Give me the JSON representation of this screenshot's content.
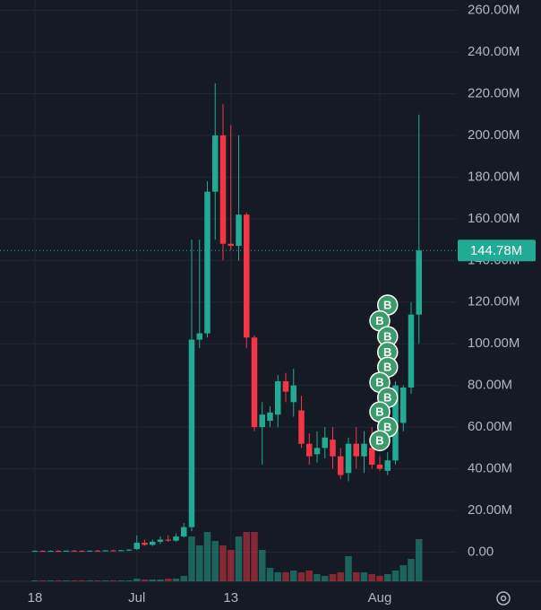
{
  "chart_data": {
    "type": "candlestick",
    "categories": [
      "18",
      null,
      null,
      null,
      null,
      null,
      null,
      null,
      null,
      null,
      null,
      null,
      null,
      "Jul",
      null,
      null,
      null,
      null,
      null,
      null,
      null,
      null,
      null,
      null,
      null,
      "13",
      null,
      null,
      null,
      null,
      null,
      null,
      null,
      null,
      null,
      null,
      null,
      null,
      null,
      null,
      null,
      null,
      null,
      null,
      "Aug",
      null,
      null,
      null,
      null,
      null
    ],
    "open": [
      0.5,
      0.6,
      0.5,
      0.6,
      0.5,
      0.7,
      0.6,
      0.5,
      0.7,
      0.6,
      0.8,
      0.7,
      0.9,
      1.5,
      4.5,
      3.5,
      5,
      6,
      5.5,
      7.5,
      12,
      102,
      105,
      173,
      200,
      148,
      147,
      162,
      103,
      60,
      63,
      66,
      82,
      72,
      68,
      52,
      47,
      50,
      54,
      46,
      38,
      52,
      46,
      50,
      42,
      39,
      44,
      62,
      79,
      114
    ],
    "high": [
      0.8,
      0.9,
      0.8,
      1,
      0.8,
      1,
      0.9,
      0.9,
      1.1,
      1,
      1.2,
      1.1,
      1.4,
      8,
      6,
      6,
      7.5,
      8,
      9,
      14,
      150,
      150,
      178,
      225,
      215,
      205,
      200,
      163,
      104,
      72,
      70,
      85,
      86,
      88,
      75,
      57,
      58,
      60,
      60,
      50,
      55,
      60,
      58,
      60,
      46,
      48,
      82,
      80,
      120,
      210
    ],
    "low": [
      0.3,
      0.4,
      0.3,
      0.4,
      0.3,
      0.5,
      0.4,
      0.3,
      0.5,
      0.4,
      0.6,
      0.5,
      0.6,
      1,
      3,
      3,
      4,
      5,
      5,
      7,
      10,
      98,
      103,
      150,
      140,
      145,
      140,
      98,
      58,
      42,
      60,
      60,
      72,
      65,
      50,
      42,
      43,
      45,
      40,
      35,
      34,
      40,
      38,
      40,
      39,
      37,
      42,
      58,
      76,
      100
    ],
    "close": [
      0.6,
      0.5,
      0.6,
      0.5,
      0.7,
      0.6,
      0.5,
      0.7,
      0.6,
      0.8,
      0.7,
      0.9,
      1.2,
      4.5,
      3.5,
      5,
      6,
      5.5,
      7.5,
      12,
      102,
      105,
      173,
      200,
      148,
      147,
      162,
      103,
      60,
      66,
      67,
      82,
      77,
      80,
      52,
      46,
      50,
      55,
      46,
      37,
      52,
      46,
      52,
      42,
      40,
      44,
      80,
      79,
      114,
      144.78
    ],
    "volume": [
      1,
      1,
      1,
      1,
      1,
      1,
      1,
      1,
      1,
      1,
      1,
      1,
      1,
      3,
      2,
      2,
      2,
      3,
      3,
      6,
      50,
      40,
      55,
      45,
      40,
      35,
      50,
      55,
      55,
      35,
      15,
      10,
      10,
      12,
      10,
      12,
      8,
      6,
      8,
      10,
      28,
      10,
      10,
      8,
      6,
      8,
      12,
      18,
      25,
      47
    ],
    "up_color": "#22ab94",
    "down_color": "#f23645",
    "ylim": [
      -14,
      265
    ],
    "yticks": [
      {
        "value": 0,
        "label": "0.00"
      },
      {
        "value": 20,
        "label": "20.00M"
      },
      {
        "value": 40,
        "label": "40.00M"
      },
      {
        "value": 60,
        "label": "60.00M"
      },
      {
        "value": 80,
        "label": "80.00M"
      },
      {
        "value": 100,
        "label": "100.00M"
      },
      {
        "value": 120,
        "label": "120.00M"
      },
      {
        "value": 140,
        "label": "140.00M"
      },
      {
        "value": 160,
        "label": "160.00M"
      },
      {
        "value": 180,
        "label": "180.00M"
      },
      {
        "value": 200,
        "label": "200.00M"
      },
      {
        "value": 220,
        "label": "220.00M"
      },
      {
        "value": 240,
        "label": "240.00M"
      },
      {
        "value": 260,
        "label": "260.00M"
      }
    ],
    "last_price": {
      "value": 144.78,
      "label": "144.78M"
    },
    "markers": {
      "label": "B",
      "index": [
        45,
        44,
        45,
        45,
        45,
        44,
        45,
        44,
        45,
        44
      ],
      "values": [
        118.6,
        111,
        103.5,
        96,
        88.8,
        81.5,
        74.2,
        67.3,
        60,
        53.5
      ]
    },
    "grid": true
  }
}
